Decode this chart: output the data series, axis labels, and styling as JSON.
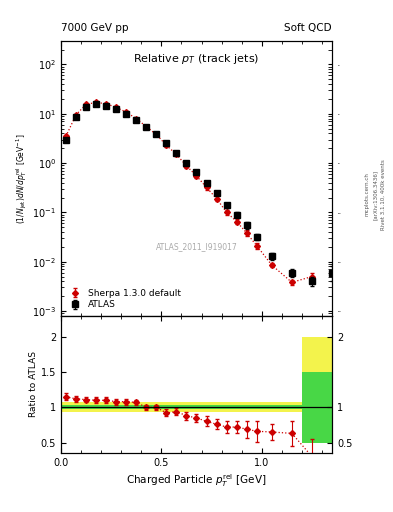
{
  "title_left": "7000 GeV pp",
  "title_right": "Soft QCD",
  "watermark": "ATLAS_2011_I919017",
  "right_label1": "Rivet 3.1.10, 400k events",
  "right_label2": "[arXiv:1306.3436]",
  "right_label3": "mcplots.cern.ch",
  "atlas_x": [
    0.025,
    0.075,
    0.125,
    0.175,
    0.225,
    0.275,
    0.325,
    0.375,
    0.425,
    0.475,
    0.525,
    0.575,
    0.625,
    0.675,
    0.725,
    0.775,
    0.825,
    0.875,
    0.925,
    0.975,
    1.05,
    1.15,
    1.25,
    1.35
  ],
  "atlas_y": [
    3.0,
    8.5,
    14.0,
    15.5,
    14.5,
    12.5,
    10.0,
    7.5,
    5.5,
    3.8,
    2.5,
    1.6,
    1.0,
    0.65,
    0.4,
    0.25,
    0.14,
    0.09,
    0.055,
    0.032,
    0.013,
    0.006,
    0.004,
    0.006
  ],
  "atlas_yerr": [
    0.3,
    0.5,
    0.7,
    0.7,
    0.7,
    0.6,
    0.5,
    0.4,
    0.3,
    0.25,
    0.18,
    0.12,
    0.08,
    0.055,
    0.038,
    0.025,
    0.016,
    0.011,
    0.008,
    0.005,
    0.002,
    0.001,
    0.0008,
    0.002
  ],
  "sherpa_x": [
    0.025,
    0.075,
    0.125,
    0.175,
    0.225,
    0.275,
    0.325,
    0.375,
    0.425,
    0.475,
    0.525,
    0.575,
    0.625,
    0.675,
    0.725,
    0.775,
    0.825,
    0.875,
    0.925,
    0.975,
    1.05,
    1.15,
    1.25
  ],
  "sherpa_y": [
    3.5,
    9.5,
    15.5,
    17.0,
    16.0,
    13.5,
    10.8,
    8.0,
    5.5,
    3.8,
    2.3,
    1.5,
    0.88,
    0.55,
    0.32,
    0.19,
    0.1,
    0.065,
    0.038,
    0.021,
    0.0085,
    0.0038,
    0.005
  ],
  "sherpa_yerr": [
    0.2,
    0.4,
    0.6,
    0.6,
    0.6,
    0.5,
    0.4,
    0.35,
    0.25,
    0.2,
    0.15,
    0.1,
    0.07,
    0.05,
    0.03,
    0.02,
    0.012,
    0.008,
    0.005,
    0.003,
    0.0008,
    0.0004,
    0.001
  ],
  "ratio_x": [
    0.025,
    0.075,
    0.125,
    0.175,
    0.225,
    0.275,
    0.325,
    0.375,
    0.425,
    0.475,
    0.525,
    0.575,
    0.625,
    0.675,
    0.725,
    0.775,
    0.825,
    0.875,
    0.925,
    0.975,
    1.05,
    1.15,
    1.25
  ],
  "ratio_y": [
    1.15,
    1.12,
    1.11,
    1.1,
    1.1,
    1.08,
    1.08,
    1.07,
    1.0,
    1.0,
    0.92,
    0.94,
    0.88,
    0.85,
    0.8,
    0.76,
    0.72,
    0.72,
    0.69,
    0.66,
    0.65,
    0.63,
    0.3
  ],
  "ratio_yerr": [
    0.05,
    0.04,
    0.04,
    0.04,
    0.04,
    0.04,
    0.04,
    0.04,
    0.04,
    0.04,
    0.05,
    0.05,
    0.06,
    0.06,
    0.07,
    0.07,
    0.09,
    0.09,
    0.12,
    0.15,
    0.12,
    0.18,
    0.25
  ],
  "band_edges": [
    0.0,
    0.05,
    0.1,
    0.15,
    0.2,
    0.25,
    0.3,
    0.35,
    0.4,
    0.45,
    0.5,
    0.55,
    0.6,
    0.65,
    0.7,
    0.75,
    0.8,
    0.85,
    0.9,
    0.95,
    1.0,
    1.1,
    1.2
  ],
  "band_green_lo": [
    0.97,
    0.97,
    0.97,
    0.97,
    0.97,
    0.97,
    0.97,
    0.97,
    0.97,
    0.97,
    0.97,
    0.97,
    0.97,
    0.97,
    0.97,
    0.97,
    0.97,
    0.97,
    0.97,
    0.97,
    0.97,
    0.97
  ],
  "band_green_hi": [
    1.03,
    1.03,
    1.03,
    1.03,
    1.03,
    1.03,
    1.03,
    1.03,
    1.03,
    1.03,
    1.03,
    1.03,
    1.03,
    1.03,
    1.03,
    1.03,
    1.03,
    1.03,
    1.03,
    1.03,
    1.03,
    1.03
  ],
  "band_yellow_lo": [
    0.93,
    0.93,
    0.93,
    0.93,
    0.93,
    0.93,
    0.93,
    0.93,
    0.93,
    0.93,
    0.93,
    0.93,
    0.93,
    0.93,
    0.93,
    0.93,
    0.93,
    0.93,
    0.93,
    0.93,
    0.93,
    0.93
  ],
  "band_yellow_hi": [
    1.08,
    1.08,
    1.08,
    1.08,
    1.08,
    1.08,
    1.08,
    1.08,
    1.08,
    1.08,
    1.08,
    1.08,
    1.08,
    1.08,
    1.08,
    1.08,
    1.08,
    1.08,
    1.08,
    1.08,
    1.08,
    1.08
  ],
  "last_yellow_xlo": 1.2,
  "last_yellow_xhi": 1.35,
  "last_yellow_ylo": 0.5,
  "last_yellow_yhi": 2.0,
  "last_green_xlo": 1.2,
  "last_green_xhi": 1.35,
  "last_green_ylo": 0.5,
  "last_green_yhi": 1.5,
  "atlas_color": "#000000",
  "sherpa_color": "#cc0000",
  "green_color": "#00cc44",
  "yellow_color": "#eeee00",
  "ylim_main": [
    0.0008,
    300.0
  ],
  "ylim_ratio": [
    0.35,
    2.3
  ],
  "xlim": [
    0.0,
    1.35
  ]
}
